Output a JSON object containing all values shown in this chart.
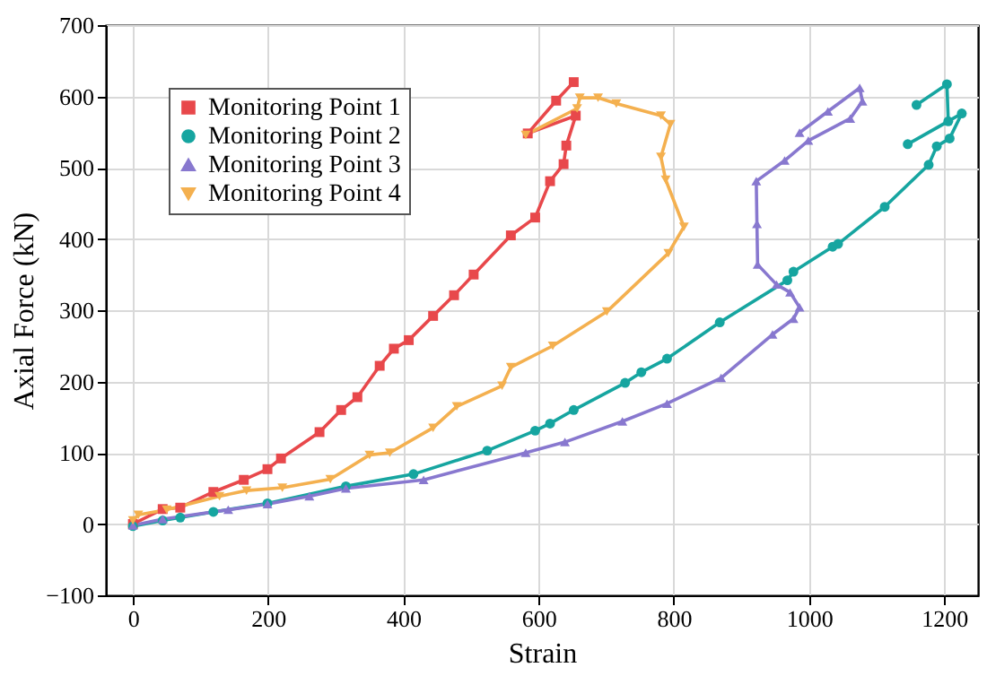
{
  "chart_data": {
    "type": "line",
    "xlabel": "Strain",
    "ylabel": "Axial Force (kN)",
    "xlim": [
      -40,
      1250
    ],
    "ylim": [
      -100,
      700
    ],
    "xticks": [
      0,
      200,
      400,
      600,
      800,
      1000,
      1200
    ],
    "yticks": [
      -100,
      0,
      100,
      200,
      300,
      400,
      500,
      600,
      700
    ],
    "grid": true,
    "legend": "top left",
    "line_style": "solid",
    "series": [
      {
        "name": "Monitoring Point 1",
        "color": "#e8484b",
        "marker": "square",
        "x": [
          0,
          44,
          70,
          119,
          164,
          199,
          219,
          276,
          308,
          332,
          365,
          386,
          408,
          444,
          475,
          504,
          559,
          595,
          617,
          637,
          641,
          655,
          584,
          626,
          652
        ],
        "values": [
          0,
          21,
          23,
          45,
          62,
          77,
          92,
          129,
          160,
          178,
          222,
          246,
          258,
          292,
          321,
          350,
          405,
          430,
          481,
          505,
          531,
          573,
          548,
          594,
          620
        ]
      },
      {
        "name": "Monitoring Point 2",
        "color": "#16a5a0",
        "marker": "circle",
        "x": [
          0,
          44,
          70,
          119,
          199,
          315,
          415,
          524,
          595,
          617,
          652,
          728,
          752,
          790,
          868,
          968,
          977,
          1035,
          1043,
          1112,
          1177,
          1189,
          1208,
          1226,
          1146,
          1206,
          1204,
          1159
        ],
        "values": [
          -3,
          5,
          9,
          17,
          29,
          53,
          70,
          103,
          131,
          141,
          160,
          198,
          213,
          232,
          283,
          342,
          354,
          389,
          393,
          445,
          504,
          530,
          541,
          576,
          533,
          565,
          617,
          588
        ]
      },
      {
        "name": "Monitoring Point 3",
        "color": "#8878cf",
        "marker": "triangle",
        "x": [
          0,
          44,
          141,
          199,
          261,
          315,
          430,
          581,
          639,
          724,
          790,
          870,
          946,
          977,
          986,
          972,
          952,
          924,
          923,
          922,
          964,
          999,
          1061,
          1079,
          1075,
          1028,
          986
        ],
        "values": [
          -2,
          7,
          20,
          28,
          39,
          50,
          62,
          100,
          115,
          144,
          169,
          205,
          266,
          288,
          304,
          325,
          336,
          364,
          421,
          481,
          510,
          538,
          569,
          593,
          612,
          579,
          549
        ]
      },
      {
        "name": "Monitoring Point 4",
        "color": "#f4b04f",
        "marker": "triangle-down",
        "x": [
          0,
          8,
          50,
          128,
          168,
          221,
          292,
          350,
          380,
          444,
          479,
          546,
          559,
          621,
          701,
          792,
          815,
          788,
          781,
          795,
          781,
          715,
          688,
          661,
          657,
          581
        ],
        "values": [
          5,
          13,
          20,
          39,
          47,
          51,
          63,
          97,
          100,
          135,
          165,
          194,
          220,
          250,
          298,
          380,
          417,
          483,
          515,
          561,
          573,
          590,
          598,
          598,
          583,
          546
        ]
      }
    ]
  }
}
